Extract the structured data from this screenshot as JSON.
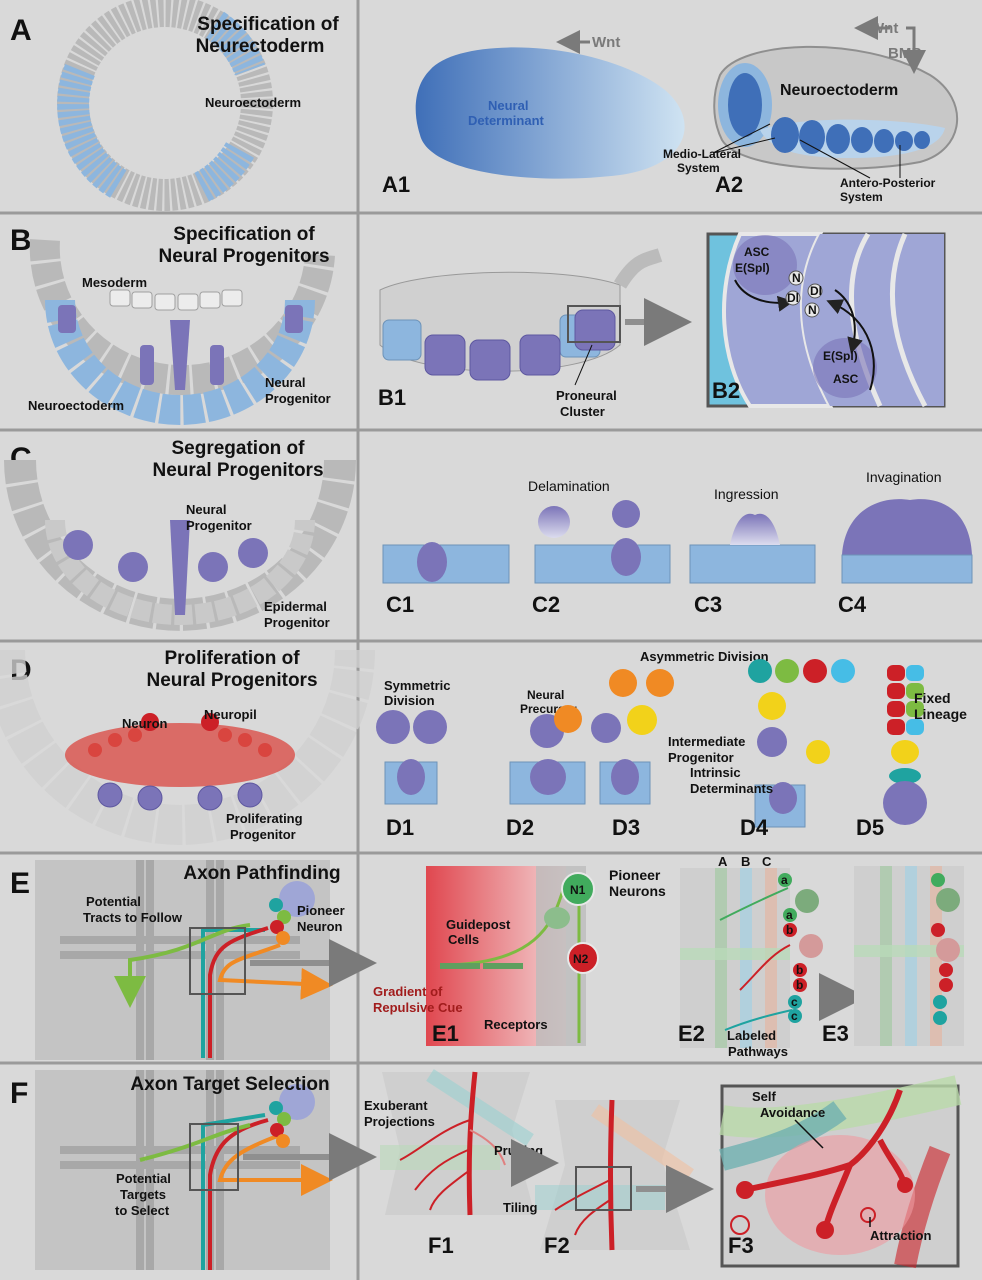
{
  "colors": {
    "background": "#d9d9d9",
    "divider": "#9a9a9a",
    "neuroectoderm_blue": "#8db6de",
    "neural_progenitor_purple": "#7b74b8",
    "neuron_red": "#d9453f",
    "axon_green": "#7dbb42",
    "axon_teal": "#1fa3a0",
    "axon_orange": "#f08a24",
    "axon_red": "#cc2027"
  },
  "rows": {
    "a": {
      "label": "A",
      "title_line1": "Specification of",
      "title_line2": "Neurectoderm",
      "neuroectoderm": "Neuroectoderm",
      "a1": {
        "label": "A1",
        "wnt": "Wnt",
        "det1": "Neural",
        "det2": "Determinant"
      },
      "a2": {
        "label": "A2",
        "wnt": "Wnt",
        "bmp": "BMP",
        "neuroectoderm": "Neuroectoderm",
        "ml1": "Medio-Lateral",
        "ml2": "System",
        "ap1": "Antero-Posterior",
        "ap2": "System"
      }
    },
    "b": {
      "label": "B",
      "title_line1": "Specification of",
      "title_line2": "Neural Progenitors",
      "mesoderm": "Mesoderm",
      "neuroectoderm": "Neuroectoderm",
      "np1": "Neural",
      "np2": "Progenitor",
      "b1": {
        "label": "B1",
        "pc1": "Proneural",
        "pc2": "Cluster"
      },
      "b2": {
        "label": "B2",
        "asc": "ASC",
        "espl": "E(Spl)",
        "n": "N",
        "dl": "Dl"
      }
    },
    "c": {
      "label": "C",
      "title_line1": "Segregation of",
      "title_line2": "Neural Progenitors",
      "np1": "Neural",
      "np2": "Progenitor",
      "ep1": "Epidermal",
      "ep2": "Progenitor",
      "modes": [
        {
          "label": "C1",
          "name": ""
        },
        {
          "label": "C2",
          "name": "Delamination"
        },
        {
          "label": "C3",
          "name": "Ingression"
        },
        {
          "label": "C4",
          "name": "Invagination"
        }
      ]
    },
    "d": {
      "label": "D",
      "title_line1": "Proliferation of",
      "title_line2": "Neural Progenitors",
      "neuron": "Neuron",
      "neuropil": "Neuropil",
      "pp1": "Proliferating",
      "pp2": "Progenitor",
      "d1": {
        "label": "D1",
        "t1": "Symmetric",
        "t2": "Division"
      },
      "d2": {
        "label": "D2",
        "t1": "Neural",
        "t2": "Precursor"
      },
      "d3": {
        "label": "D3",
        "ip1": "Intermediate",
        "ip2": "Progenitor"
      },
      "asym": "Asymmetric Division",
      "d4": {
        "label": "D4",
        "id1": "Intrinsic",
        "id2": "Determinants"
      },
      "d5": {
        "label": "D5",
        "fl1": "Fixed",
        "fl2": "Lineage"
      }
    },
    "e": {
      "label": "E",
      "title": "Axon Pathfinding",
      "pt1": "Potential",
      "pt2": "Tracts to Follow",
      "pn1": "Pioneer",
      "pn2": "Neuron",
      "e1": {
        "label": "E1",
        "pn1": "Pioneer",
        "pn2": "Neurons",
        "n1": "N1",
        "n2": "N2",
        "gc1": "Guidepost",
        "gc2": "Cells",
        "gr1": "Gradient of",
        "gr2": "Repulsive Cue",
        "receptors": "Receptors"
      },
      "e2": {
        "label": "E2",
        "cols": [
          "A",
          "B",
          "C"
        ],
        "lp1": "Labeled",
        "lp2": "Pathways",
        "tags": [
          "a",
          "a",
          "b",
          "b",
          "b",
          "c",
          "c"
        ]
      },
      "e3": {
        "label": "E3"
      }
    },
    "f": {
      "label": "F",
      "title": "Axon Target Selection",
      "pt1": "Potential",
      "pt2": "Targets",
      "pt3": "to Select",
      "f1": {
        "label": "F1",
        "ex1": "Exuberant",
        "ex2": "Projections",
        "pruning": "Pruning"
      },
      "f2": {
        "label": "F2",
        "tiling": "Tiling"
      },
      "f3": {
        "label": "F3",
        "sa1": "Self",
        "sa2": "Avoidance",
        "attraction": "Attraction"
      }
    }
  }
}
